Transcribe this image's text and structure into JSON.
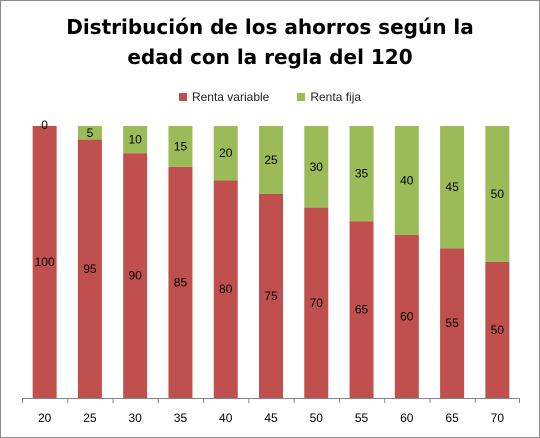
{
  "chart_data": {
    "type": "bar",
    "stacked": true,
    "title": "Distribución de los ahorros según la edad con la regla del 120",
    "title_lines": [
      "Distribución de los ahorros según la",
      "edad con la regla del 120"
    ],
    "categories": [
      "20",
      "25",
      "30",
      "35",
      "40",
      "45",
      "50",
      "55",
      "60",
      "65",
      "70"
    ],
    "series": [
      {
        "name": "Renta variable",
        "color": "#c0504d",
        "values": [
          100,
          95,
          90,
          85,
          80,
          75,
          70,
          65,
          60,
          55,
          50
        ]
      },
      {
        "name": "Renta fija",
        "color": "#9bbb59",
        "values": [
          0,
          5,
          10,
          15,
          20,
          25,
          30,
          35,
          40,
          45,
          50
        ]
      }
    ],
    "ylim": [
      0,
      100
    ],
    "grid": false,
    "legend_position": "top",
    "data_labels": true
  }
}
